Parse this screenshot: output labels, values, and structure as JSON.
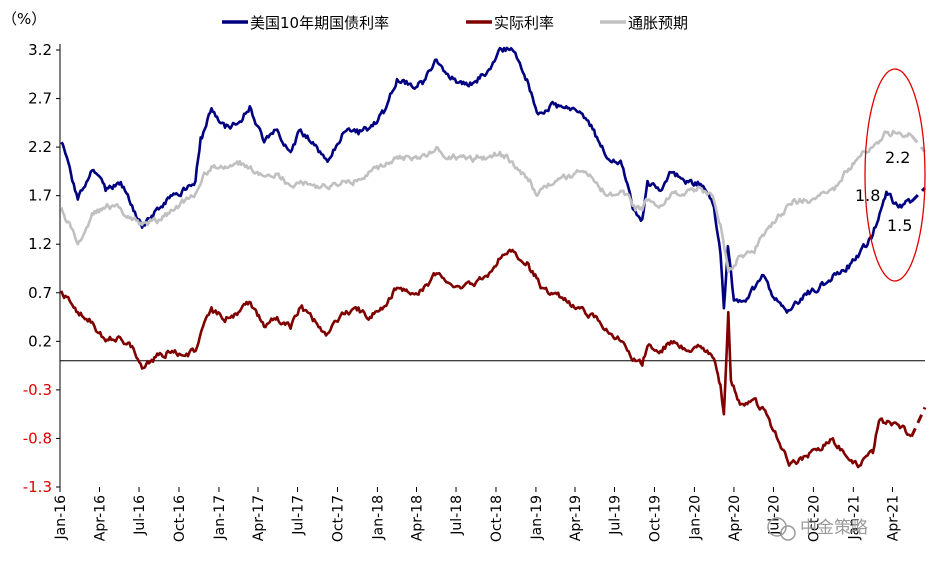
{
  "chart_data": {
    "type": "line",
    "y_unit_label": "（%）",
    "ylim": [
      -1.3,
      3.2
    ],
    "y_ticks": [
      3.2,
      2.7,
      2.2,
      1.7,
      1.2,
      0.7,
      0.2,
      -0.3,
      -0.8,
      -1.3
    ],
    "x_range": [
      "2016-01-01",
      "2021-06-15"
    ],
    "x_ticks": [
      "Jan-16",
      "Apr-16",
      "Jul-16",
      "Oct-16",
      "Jan-17",
      "Apr-17",
      "Jul-17",
      "Oct-17",
      "Jan-18",
      "Apr-18",
      "Jul-18",
      "Oct-18",
      "Jan-19",
      "Apr-19",
      "Jul-19",
      "Oct-19",
      "Jan-20",
      "Apr-20",
      "Jul-20",
      "Oct-20",
      "Jan-21",
      "Apr-21"
    ],
    "legend_position": "top",
    "grid": false,
    "series": [
      {
        "name": "美国10年期国债利率",
        "color": "#000080",
        "points": [
          [
            "2016-01-04",
            2.25
          ],
          [
            "2016-02-11",
            1.66
          ],
          [
            "2016-03-15",
            1.96
          ],
          [
            "2016-04-15",
            1.75
          ],
          [
            "2016-05-20",
            1.84
          ],
          [
            "2016-06-15",
            1.6
          ],
          [
            "2016-07-08",
            1.37
          ],
          [
            "2016-08-15",
            1.56
          ],
          [
            "2016-09-15",
            1.7
          ],
          [
            "2016-10-15",
            1.76
          ],
          [
            "2016-11-08",
            1.85
          ],
          [
            "2016-11-20",
            2.3
          ],
          [
            "2016-12-15",
            2.6
          ],
          [
            "2017-01-15",
            2.4
          ],
          [
            "2017-02-15",
            2.45
          ],
          [
            "2017-03-13",
            2.62
          ],
          [
            "2017-04-15",
            2.25
          ],
          [
            "2017-05-15",
            2.38
          ],
          [
            "2017-06-15",
            2.15
          ],
          [
            "2017-07-08",
            2.38
          ],
          [
            "2017-08-15",
            2.2
          ],
          [
            "2017-09-08",
            2.05
          ],
          [
            "2017-10-15",
            2.35
          ],
          [
            "2017-11-15",
            2.38
          ],
          [
            "2017-12-15",
            2.4
          ],
          [
            "2018-01-15",
            2.55
          ],
          [
            "2018-02-15",
            2.9
          ],
          [
            "2018-03-15",
            2.85
          ],
          [
            "2018-04-15",
            2.85
          ],
          [
            "2018-05-17",
            3.1
          ],
          [
            "2018-06-15",
            2.92
          ],
          [
            "2018-07-15",
            2.85
          ],
          [
            "2018-08-15",
            2.88
          ],
          [
            "2018-09-15",
            3.0
          ],
          [
            "2018-10-10",
            3.22
          ],
          [
            "2018-11-08",
            3.2
          ],
          [
            "2018-12-15",
            2.85
          ],
          [
            "2019-01-03",
            2.56
          ],
          [
            "2019-02-15",
            2.65
          ],
          [
            "2019-03-15",
            2.6
          ],
          [
            "2019-04-15",
            2.55
          ],
          [
            "2019-05-15",
            2.38
          ],
          [
            "2019-06-15",
            2.08
          ],
          [
            "2019-07-15",
            2.06
          ],
          [
            "2019-08-15",
            1.55
          ],
          [
            "2019-09-03",
            1.46
          ],
          [
            "2019-09-15",
            1.85
          ],
          [
            "2019-10-15",
            1.75
          ],
          [
            "2019-11-08",
            1.94
          ],
          [
            "2019-12-15",
            1.85
          ],
          [
            "2020-01-15",
            1.82
          ],
          [
            "2020-02-15",
            1.58
          ],
          [
            "2020-03-01",
            1.1
          ],
          [
            "2020-03-09",
            0.54
          ],
          [
            "2020-03-18",
            1.18
          ],
          [
            "2020-04-01",
            0.62
          ],
          [
            "2020-05-01",
            0.64
          ],
          [
            "2020-06-08",
            0.88
          ],
          [
            "2020-07-01",
            0.65
          ],
          [
            "2020-08-04",
            0.52
          ],
          [
            "2020-09-15",
            0.68
          ],
          [
            "2020-10-15",
            0.75
          ],
          [
            "2020-11-15",
            0.88
          ],
          [
            "2020-12-15",
            0.92
          ],
          [
            "2021-01-15",
            1.1
          ],
          [
            "2021-02-15",
            1.3
          ],
          [
            "2021-03-18",
            1.74
          ],
          [
            "2021-04-15",
            1.58
          ],
          [
            "2021-05-15",
            1.64
          ]
        ]
      },
      {
        "name": "实际利率",
        "color": "#800000",
        "points": [
          [
            "2016-01-04",
            0.72
          ],
          [
            "2016-02-11",
            0.5
          ],
          [
            "2016-03-15",
            0.4
          ],
          [
            "2016-04-15",
            0.2
          ],
          [
            "2016-05-15",
            0.25
          ],
          [
            "2016-06-15",
            0.15
          ],
          [
            "2016-07-08",
            -0.08
          ],
          [
            "2016-08-15",
            0.06
          ],
          [
            "2016-09-15",
            0.1
          ],
          [
            "2016-10-15",
            0.05
          ],
          [
            "2016-11-08",
            0.1
          ],
          [
            "2016-11-25",
            0.35
          ],
          [
            "2016-12-15",
            0.55
          ],
          [
            "2017-01-15",
            0.4
          ],
          [
            "2017-02-15",
            0.5
          ],
          [
            "2017-03-15",
            0.6
          ],
          [
            "2017-04-15",
            0.35
          ],
          [
            "2017-05-15",
            0.45
          ],
          [
            "2017-06-15",
            0.33
          ],
          [
            "2017-07-08",
            0.55
          ],
          [
            "2017-08-15",
            0.38
          ],
          [
            "2017-09-08",
            0.28
          ],
          [
            "2017-10-15",
            0.48
          ],
          [
            "2017-11-15",
            0.52
          ],
          [
            "2017-12-15",
            0.45
          ],
          [
            "2018-01-15",
            0.55
          ],
          [
            "2018-02-15",
            0.75
          ],
          [
            "2018-03-15",
            0.7
          ],
          [
            "2018-04-15",
            0.72
          ],
          [
            "2018-05-17",
            0.9
          ],
          [
            "2018-06-15",
            0.8
          ],
          [
            "2018-07-15",
            0.75
          ],
          [
            "2018-08-15",
            0.8
          ],
          [
            "2018-09-15",
            0.9
          ],
          [
            "2018-10-10",
            1.05
          ],
          [
            "2018-11-08",
            1.14
          ],
          [
            "2018-12-15",
            1.0
          ],
          [
            "2019-01-15",
            0.75
          ],
          [
            "2019-02-15",
            0.7
          ],
          [
            "2019-03-15",
            0.6
          ],
          [
            "2019-04-15",
            0.55
          ],
          [
            "2019-05-15",
            0.45
          ],
          [
            "2019-06-15",
            0.3
          ],
          [
            "2019-07-15",
            0.2
          ],
          [
            "2019-08-15",
            0.02
          ],
          [
            "2019-09-03",
            -0.05
          ],
          [
            "2019-09-15",
            0.15
          ],
          [
            "2019-10-15",
            0.1
          ],
          [
            "2019-11-08",
            0.2
          ],
          [
            "2019-12-15",
            0.1
          ],
          [
            "2020-01-15",
            0.15
          ],
          [
            "2020-02-15",
            0.02
          ],
          [
            "2020-03-01",
            -0.25
          ],
          [
            "2020-03-09",
            -0.55
          ],
          [
            "2020-03-19",
            0.5
          ],
          [
            "2020-03-25",
            -0.2
          ],
          [
            "2020-04-15",
            -0.45
          ],
          [
            "2020-05-15",
            -0.4
          ],
          [
            "2020-06-15",
            -0.55
          ],
          [
            "2020-07-15",
            -0.85
          ],
          [
            "2020-08-06",
            -1.08
          ],
          [
            "2020-09-15",
            -0.98
          ],
          [
            "2020-10-15",
            -0.92
          ],
          [
            "2020-11-15",
            -0.8
          ],
          [
            "2020-12-15",
            -0.98
          ],
          [
            "2021-01-15",
            -1.08
          ],
          [
            "2021-02-15",
            -0.95
          ],
          [
            "2021-03-01",
            -0.62
          ],
          [
            "2021-04-15",
            -0.66
          ],
          [
            "2021-05-15",
            -0.78
          ]
        ]
      },
      {
        "name": "通胀预期",
        "color": "#c0c0c0",
        "points": [
          [
            "2016-01-04",
            1.58
          ],
          [
            "2016-02-11",
            1.2
          ],
          [
            "2016-03-15",
            1.52
          ],
          [
            "2016-04-15",
            1.58
          ],
          [
            "2016-05-15",
            1.58
          ],
          [
            "2016-06-15",
            1.45
          ],
          [
            "2016-07-08",
            1.4
          ],
          [
            "2016-08-15",
            1.45
          ],
          [
            "2016-09-15",
            1.55
          ],
          [
            "2016-10-15",
            1.65
          ],
          [
            "2016-11-08",
            1.72
          ],
          [
            "2016-11-25",
            1.9
          ],
          [
            "2016-12-15",
            2.0
          ],
          [
            "2017-01-15",
            2.0
          ],
          [
            "2017-02-15",
            2.02
          ],
          [
            "2017-03-15",
            2.0
          ],
          [
            "2017-04-15",
            1.9
          ],
          [
            "2017-05-15",
            1.92
          ],
          [
            "2017-06-15",
            1.8
          ],
          [
            "2017-07-08",
            1.85
          ],
          [
            "2017-08-15",
            1.8
          ],
          [
            "2017-09-08",
            1.78
          ],
          [
            "2017-10-15",
            1.85
          ],
          [
            "2017-11-15",
            1.85
          ],
          [
            "2017-12-15",
            1.95
          ],
          [
            "2018-01-15",
            2.0
          ],
          [
            "2018-02-15",
            2.1
          ],
          [
            "2018-03-15",
            2.1
          ],
          [
            "2018-04-15",
            2.12
          ],
          [
            "2018-05-17",
            2.2
          ],
          [
            "2018-06-15",
            2.1
          ],
          [
            "2018-07-15",
            2.1
          ],
          [
            "2018-08-15",
            2.08
          ],
          [
            "2018-09-15",
            2.1
          ],
          [
            "2018-10-10",
            2.15
          ],
          [
            "2018-11-08",
            2.05
          ],
          [
            "2018-12-15",
            1.85
          ],
          [
            "2019-01-03",
            1.7
          ],
          [
            "2019-02-15",
            1.85
          ],
          [
            "2019-03-15",
            1.9
          ],
          [
            "2019-04-15",
            1.95
          ],
          [
            "2019-05-15",
            1.85
          ],
          [
            "2019-06-15",
            1.7
          ],
          [
            "2019-07-15",
            1.75
          ],
          [
            "2019-08-15",
            1.6
          ],
          [
            "2019-09-03",
            1.55
          ],
          [
            "2019-09-15",
            1.65
          ],
          [
            "2019-10-15",
            1.6
          ],
          [
            "2019-11-08",
            1.72
          ],
          [
            "2019-12-15",
            1.75
          ],
          [
            "2020-01-15",
            1.78
          ],
          [
            "2020-02-15",
            1.65
          ],
          [
            "2020-03-01",
            1.4
          ],
          [
            "2020-03-19",
            0.92
          ],
          [
            "2020-04-15",
            1.08
          ],
          [
            "2020-05-15",
            1.12
          ],
          [
            "2020-06-15",
            1.35
          ],
          [
            "2020-07-15",
            1.5
          ],
          [
            "2020-08-15",
            1.65
          ],
          [
            "2020-09-15",
            1.65
          ],
          [
            "2020-10-15",
            1.7
          ],
          [
            "2020-11-15",
            1.78
          ],
          [
            "2020-12-15",
            1.95
          ],
          [
            "2021-01-15",
            2.1
          ],
          [
            "2021-02-15",
            2.2
          ],
          [
            "2021-03-18",
            2.35
          ],
          [
            "2021-04-15",
            2.35
          ],
          [
            "2021-05-15",
            2.32
          ]
        ]
      }
    ],
    "projections": [
      {
        "series": "美国10年期国债利率",
        "color": "#000080",
        "from": [
          "2021-05-15",
          1.64
        ],
        "to": [
          "2021-06-15",
          1.78
        ]
      },
      {
        "series": "实际利率",
        "color": "#800000",
        "from": [
          "2021-05-15",
          -0.78
        ],
        "to": [
          "2021-06-15",
          -0.48
        ]
      },
      {
        "series": "通胀预期",
        "color": "#c0c0c0",
        "from": [
          "2021-05-15",
          2.32
        ],
        "to": [
          "2021-06-15",
          2.15
        ]
      }
    ],
    "annotations": [
      {
        "text": "2.2"
      },
      {
        "text": "1.8"
      },
      {
        "text": "1.5"
      }
    ],
    "highlight": {
      "shape": "ellipse",
      "color": "#e00000"
    },
    "watermark": "中金策略"
  }
}
